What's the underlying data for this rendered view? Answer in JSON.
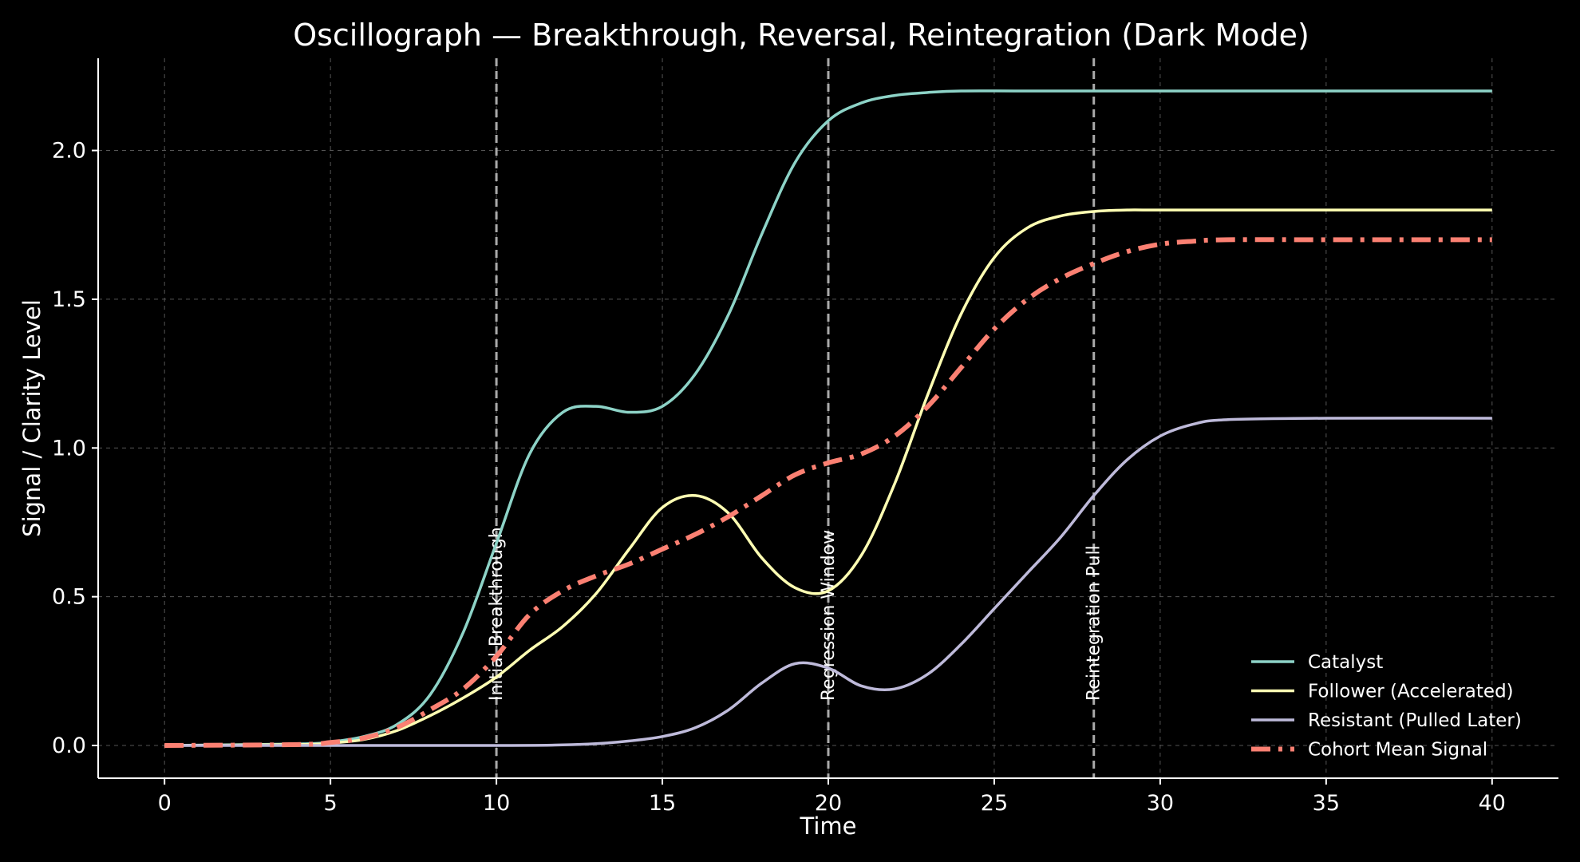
{
  "chart_data": {
    "type": "line",
    "title": "Oscillograph — Breakthrough, Reversal, Reintegration (Dark Mode)",
    "xlabel": "Time",
    "ylabel": "Signal / Clarity Level",
    "xlim": [
      -2,
      42
    ],
    "ylim": [
      -0.11,
      2.31
    ],
    "xticks": [
      0,
      5,
      10,
      15,
      20,
      25,
      30,
      35,
      40
    ],
    "xtick_labels": [
      "0",
      "5",
      "10",
      "15",
      "20",
      "25",
      "30",
      "35",
      "40"
    ],
    "yticks": [
      0,
      0.5,
      1.0,
      1.5,
      2.0
    ],
    "ytick_labels": [
      "0.0",
      "0.5",
      "1.0",
      "1.5",
      "2.0"
    ],
    "grid": true,
    "legend_position": "bottom-right",
    "background": "#000000",
    "vlines": [
      {
        "x": 10,
        "label": "Initial Breakthrough"
      },
      {
        "x": 20,
        "label": "Regression Window"
      },
      {
        "x": 28,
        "label": "Reintegration Pull"
      }
    ],
    "series": [
      {
        "name": "Catalyst",
        "color": "#8dd3c7",
        "style": "solid",
        "x": [
          0,
          4,
          5,
          6,
          7,
          8,
          9,
          10,
          11,
          12,
          13,
          14,
          15,
          16,
          17,
          18,
          19,
          20,
          21,
          22,
          23,
          24,
          26,
          30,
          35,
          40
        ],
        "y": [
          0,
          0.005,
          0.012,
          0.03,
          0.07,
          0.17,
          0.38,
          0.68,
          0.98,
          1.12,
          1.14,
          1.12,
          1.14,
          1.25,
          1.45,
          1.72,
          1.96,
          2.1,
          2.16,
          2.185,
          2.195,
          2.2,
          2.2,
          2.2,
          2.2,
          2.2
        ]
      },
      {
        "name": "Follower (Accelerated)",
        "color": "#ffffb3",
        "style": "solid",
        "x": [
          0,
          4,
          5,
          6,
          7,
          8,
          9,
          10,
          11,
          12,
          13,
          14,
          15,
          16,
          17,
          18,
          19,
          20,
          21,
          22,
          23,
          24,
          25,
          26,
          27,
          28,
          29,
          30,
          35,
          40
        ],
        "y": [
          0,
          0.003,
          0.008,
          0.02,
          0.05,
          0.1,
          0.16,
          0.23,
          0.32,
          0.4,
          0.51,
          0.66,
          0.8,
          0.84,
          0.78,
          0.63,
          0.53,
          0.52,
          0.64,
          0.88,
          1.18,
          1.45,
          1.64,
          1.74,
          1.78,
          1.795,
          1.8,
          1.8,
          1.8,
          1.8
        ]
      },
      {
        "name": "Resistant (Pulled Later)",
        "color": "#bebada",
        "style": "solid",
        "x": [
          0,
          10,
          12,
          13,
          14,
          15,
          16,
          17,
          18,
          19,
          20,
          21,
          22,
          23,
          24,
          25,
          26,
          27,
          28,
          29,
          30,
          31,
          32,
          35,
          40
        ],
        "y": [
          0,
          0,
          0.002,
          0.006,
          0.015,
          0.03,
          0.06,
          0.12,
          0.21,
          0.275,
          0.26,
          0.2,
          0.19,
          0.24,
          0.34,
          0.46,
          0.58,
          0.7,
          0.84,
          0.96,
          1.04,
          1.08,
          1.095,
          1.1,
          1.1
        ]
      },
      {
        "name": "Cohort Mean Signal",
        "color": "#fb8072",
        "style": "dashdot",
        "x": [
          0,
          4,
          5,
          6,
          7,
          8,
          9,
          10,
          11,
          12,
          13,
          14,
          15,
          16,
          17,
          18,
          19,
          20,
          21,
          22,
          23,
          24,
          25,
          26,
          27,
          28,
          29,
          30,
          31,
          32,
          35,
          40
        ],
        "y": [
          0,
          0.003,
          0.01,
          0.025,
          0.06,
          0.12,
          0.19,
          0.3,
          0.44,
          0.52,
          0.57,
          0.61,
          0.66,
          0.71,
          0.77,
          0.84,
          0.91,
          0.95,
          0.98,
          1.04,
          1.14,
          1.27,
          1.4,
          1.5,
          1.57,
          1.62,
          1.66,
          1.685,
          1.695,
          1.7,
          1.7,
          1.7
        ]
      }
    ]
  }
}
